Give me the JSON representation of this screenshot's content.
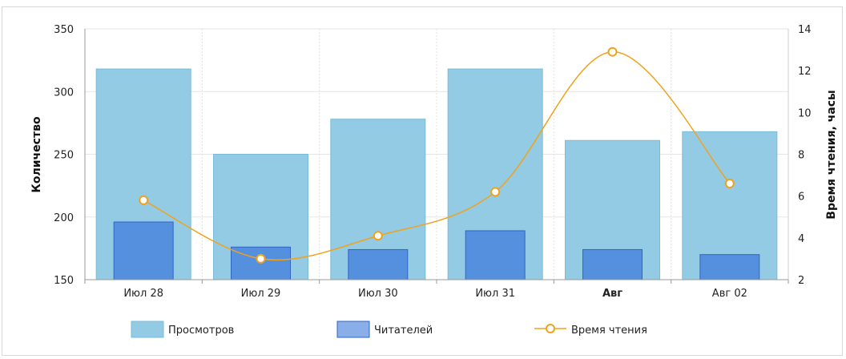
{
  "chart_data": {
    "type": "bar",
    "categories": [
      "Июл 28",
      "Июл 29",
      "Июл 30",
      "Июл 31",
      "Авг",
      "Авг 02"
    ],
    "bold_categories": [
      "Авг"
    ],
    "series": [
      {
        "name": "Просмотров",
        "type": "bar",
        "axis": "left",
        "values": [
          318,
          250,
          278,
          318,
          261,
          268
        ]
      },
      {
        "name": "Читателей",
        "type": "bar",
        "axis": "left",
        "values": [
          196,
          176,
          174,
          189,
          174,
          170
        ]
      },
      {
        "name": "Время чтения",
        "type": "line",
        "axis": "right",
        "values": [
          5.8,
          3.0,
          4.1,
          6.2,
          12.9,
          6.6
        ]
      }
    ],
    "ylabel": "Количество",
    "ylabel_right": "Время чтения, часы",
    "ylim": [
      150,
      350
    ],
    "y_ticks": [
      150,
      200,
      250,
      300,
      350
    ],
    "ylim_right": [
      2,
      14
    ],
    "y_ticks_right": [
      2,
      4,
      6,
      8,
      10,
      12,
      14
    ],
    "grid": true,
    "legend_position": "bottom",
    "colors": {
      "views": "#93cbe5",
      "views_border": "#7bbbd8",
      "readers": "#5590de",
      "readers_border": "#2f66c4",
      "line": "#f0a21c",
      "legend_readers": "#8aaee8"
    }
  }
}
